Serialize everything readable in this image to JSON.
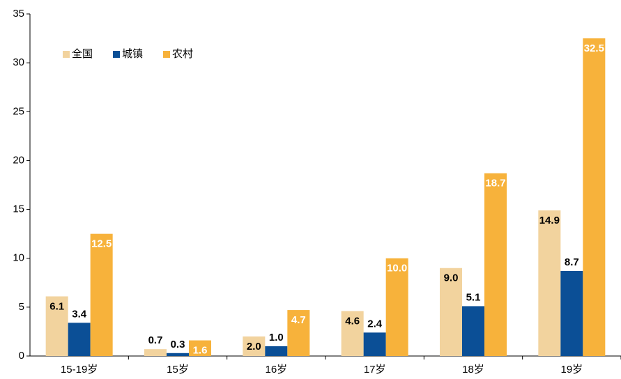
{
  "chart_data": {
    "type": "bar",
    "categories": [
      "15-19岁",
      "15岁",
      "16岁",
      "17岁",
      "18岁",
      "19岁"
    ],
    "series": [
      {
        "name": "全国",
        "color": "#f2d39e",
        "values": [
          6.1,
          0.7,
          2.0,
          4.6,
          9.0,
          14.9
        ],
        "value_labels": [
          "6.1",
          "0.7",
          "2.0",
          "4.6",
          "9.0",
          "14.9"
        ]
      },
      {
        "name": "城镇",
        "color": "#0b4f96",
        "values": [
          3.4,
          0.3,
          1.0,
          2.4,
          5.1,
          8.7
        ],
        "value_labels": [
          "3.4",
          "0.3",
          "1.0",
          "2.4",
          "5.1",
          "8.7"
        ]
      },
      {
        "name": "农村",
        "color": "#f7b23b",
        "values": [
          12.5,
          1.6,
          4.7,
          10.0,
          18.7,
          32.5
        ],
        "value_labels": [
          "12.5",
          "1.6",
          "4.7",
          "10.0",
          "18.7",
          "32.5"
        ]
      }
    ],
    "ylim": [
      0,
      35
    ],
    "yticks": [
      0,
      5,
      10,
      15,
      20,
      25,
      30,
      35
    ],
    "legend": "upper-left",
    "grid": false
  }
}
